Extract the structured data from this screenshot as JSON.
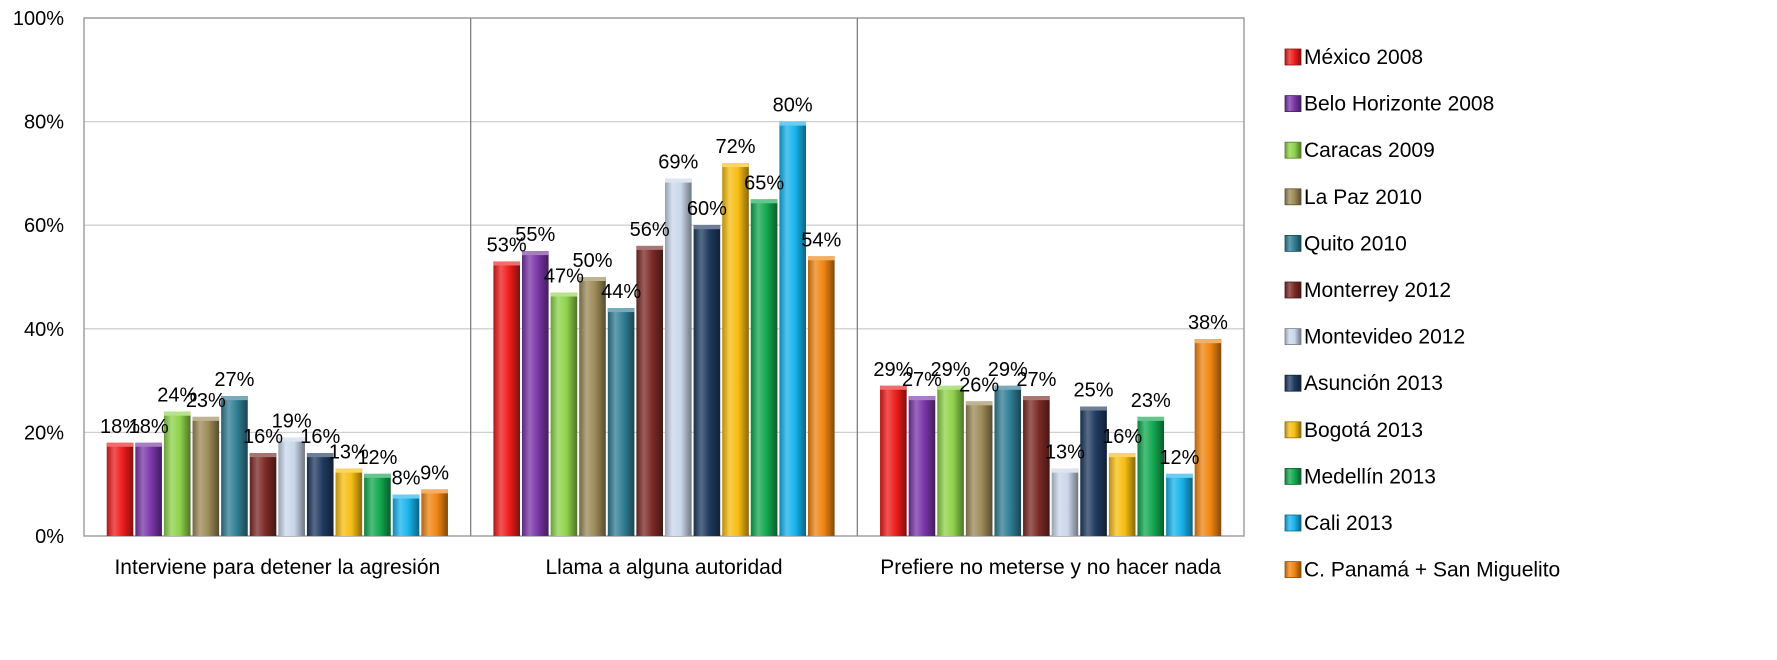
{
  "chart_data": {
    "type": "bar",
    "categories": [
      "Interviene para detener la agresión",
      "Llama a alguna autoridad",
      "Prefiere no meterse y no hacer nada"
    ],
    "series": [
      {
        "name": "México 2008",
        "color": "#ee1c1c",
        "values": [
          18,
          53,
          29
        ]
      },
      {
        "name": "Belo Horizonte 2008",
        "color": "#7a35a8",
        "values": [
          18,
          55,
          27
        ]
      },
      {
        "name": "Caracas 2009",
        "color": "#8fd24a",
        "values": [
          24,
          47,
          29
        ]
      },
      {
        "name": "La Paz 2010",
        "color": "#9c8a57",
        "values": [
          23,
          50,
          26
        ]
      },
      {
        "name": "Quito 2010",
        "color": "#2f7e94",
        "values": [
          27,
          44,
          29
        ]
      },
      {
        "name": "Monterrey 2012",
        "color": "#7b2a26",
        "values": [
          16,
          56,
          27
        ]
      },
      {
        "name": "Montevideo 2012",
        "color": "#c9d7ea",
        "values": [
          19,
          69,
          13
        ]
      },
      {
        "name": "Asunción 2013",
        "color": "#1f3a5f",
        "values": [
          16,
          60,
          25
        ]
      },
      {
        "name": "Bogotá 2013",
        "color": "#f7bd12",
        "values": [
          13,
          72,
          16
        ]
      },
      {
        "name": "Medellín 2013",
        "color": "#12a84f",
        "values": [
          12,
          65,
          23
        ]
      },
      {
        "name": "Cali 2013",
        "color": "#17b3ec",
        "values": [
          8,
          80,
          12
        ]
      },
      {
        "name": "C. Panamá + San Miguelito",
        "color": "#f08412",
        "values": [
          9,
          54,
          38
        ]
      }
    ],
    "y_ticks": [
      "0%",
      "20%",
      "40%",
      "60%",
      "80%",
      "100%"
    ],
    "ylim": [
      0,
      100
    ],
    "grid": true,
    "legend": "right"
  }
}
